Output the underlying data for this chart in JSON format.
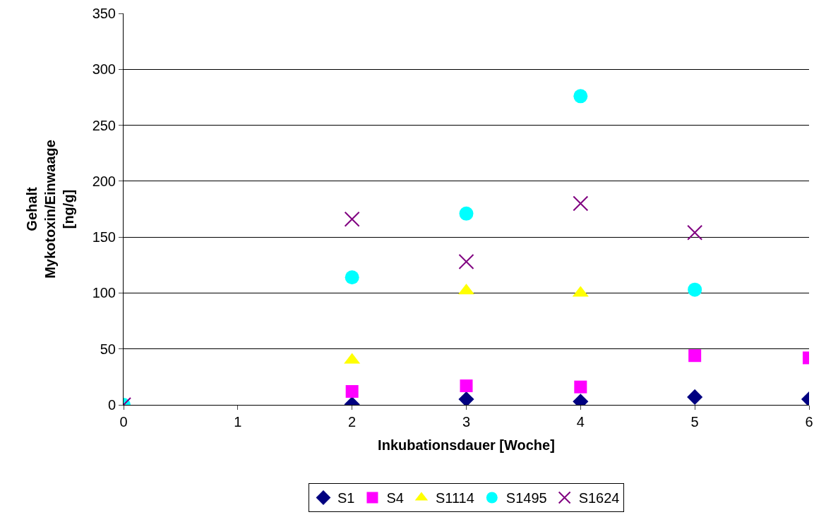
{
  "chart_data": {
    "type": "scatter",
    "xlabel": "Inkubationsdauer [Woche]",
    "ylabel": "Gehalt\nMykotoxin/Einwaage\n[ng/g]",
    "xlim": [
      0,
      6
    ],
    "xticks": [
      0,
      1,
      2,
      3,
      4,
      5,
      6
    ],
    "ylim": [
      0,
      350
    ],
    "yticks": [
      0,
      50,
      100,
      150,
      200,
      250,
      300,
      350
    ],
    "grid": "y",
    "legend": "bottom",
    "series": [
      {
        "name": "S1",
        "color": "#000080",
        "marker": "diamond",
        "x": [
          2,
          3,
          4,
          5,
          6
        ],
        "values": [
          0.5,
          5,
          3,
          7,
          5
        ]
      },
      {
        "name": "S4",
        "color": "#ff00ff",
        "marker": "square",
        "x": [
          2,
          3,
          4,
          5,
          6
        ],
        "values": [
          12,
          17,
          16,
          44,
          42
        ]
      },
      {
        "name": "S1114",
        "color": "#ffff00",
        "marker": "triangle",
        "x": [
          2,
          3,
          4
        ],
        "values": [
          40,
          102,
          100
        ]
      },
      {
        "name": "S1495",
        "color": "#00ffff",
        "marker": "circle",
        "x": [
          0,
          2,
          3,
          4,
          5
        ],
        "values": [
          0,
          114,
          171,
          276,
          103
        ]
      },
      {
        "name": "S1624",
        "color": "#800080",
        "marker": "cross",
        "x": [
          0,
          2,
          3,
          4,
          5
        ],
        "values": [
          0,
          166,
          128,
          180,
          154
        ]
      }
    ]
  }
}
